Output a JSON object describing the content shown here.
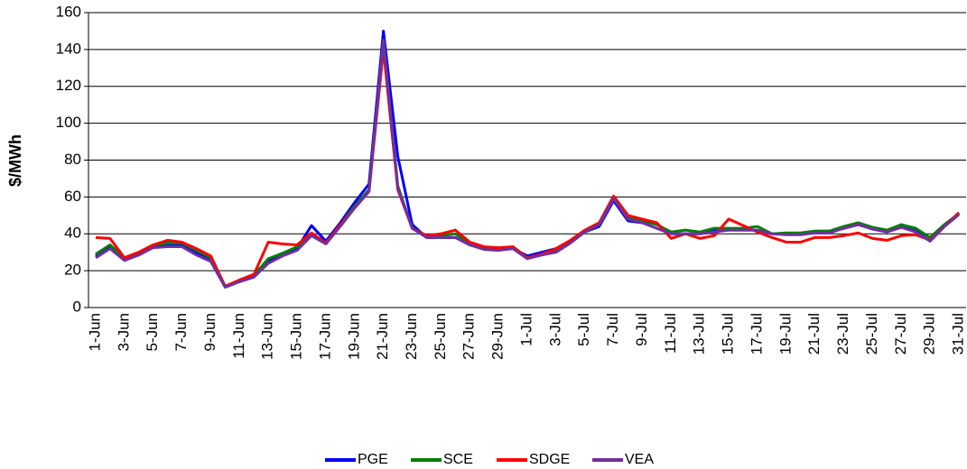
{
  "chart_data": {
    "type": "line",
    "y_label": "$/MWh",
    "categories": [
      "1-Jun",
      null,
      "3-Jun",
      null,
      "5-Jun",
      null,
      "7-Jun",
      null,
      "9-Jun",
      null,
      "11-Jun",
      null,
      "13-Jun",
      null,
      "15-Jun",
      null,
      "17-Jun",
      null,
      "19-Jun",
      null,
      "21-Jun",
      null,
      "23-Jun",
      null,
      "25-Jun",
      null,
      "27-Jun",
      null,
      "29-Jun",
      null,
      "1-Jul",
      null,
      "3-Jul",
      null,
      "5-Jul",
      null,
      "7-Jul",
      null,
      "9-Jul",
      null,
      "11-Jul",
      null,
      "13-Jul",
      null,
      "15-Jul",
      null,
      "17-Jul",
      null,
      "19-Jul",
      null,
      "21-Jul",
      null,
      "23-Jul",
      null,
      "25-Jul",
      null,
      "27-Jul",
      null,
      "29-Jul",
      null,
      "31-Jul"
    ],
    "series": [
      {
        "name": "PGE",
        "color": "#0000ff",
        "values": [
          28,
          33,
          26,
          29,
          33,
          34,
          34,
          30,
          26,
          11.5,
          14.5,
          18,
          25,
          29,
          32,
          44.5,
          36,
          46,
          57,
          67,
          150,
          82,
          45,
          38,
          38,
          38,
          34,
          32,
          31.5,
          32,
          28,
          30,
          32,
          36,
          41,
          44,
          58,
          47,
          46,
          43,
          40,
          40,
          40,
          42,
          42,
          42,
          42,
          40,
          40,
          40,
          41,
          41,
          43,
          45,
          43,
          41,
          44,
          42,
          38,
          45,
          51
        ]
      },
      {
        "name": "SCE",
        "color": "#008000",
        "values": [
          29,
          34,
          27,
          30,
          34,
          35,
          35,
          31,
          27,
          11.5,
          14.5,
          17.5,
          26.5,
          29.5,
          33,
          40,
          35,
          45,
          55,
          64,
          145,
          66,
          43,
          39,
          39,
          40,
          35,
          32.5,
          32,
          33,
          27,
          29,
          31,
          36,
          41,
          45,
          59,
          49,
          47,
          45,
          41,
          42,
          41,
          43,
          43,
          43,
          44,
          40,
          40.5,
          40.5,
          41.5,
          41.5,
          44,
          46,
          43.5,
          42,
          45,
          43,
          38,
          45,
          51
        ]
      },
      {
        "name": "SDGE",
        "color": "#ff0000",
        "values": [
          38,
          37.5,
          27,
          30,
          34,
          36.5,
          35.5,
          32,
          28,
          11.5,
          15,
          18,
          35.5,
          34.5,
          34,
          40.5,
          35,
          45,
          54,
          63,
          140,
          64,
          43,
          39,
          40,
          42,
          35.5,
          33,
          32.5,
          33,
          27,
          29,
          32,
          36.5,
          42,
          46,
          60.5,
          50,
          48,
          46,
          37.5,
          40,
          37.5,
          39,
          48,
          44.5,
          41,
          38,
          35.5,
          35.5,
          38,
          38,
          39,
          40.5,
          37.5,
          36.5,
          39,
          39.5,
          36.5,
          44,
          51.5
        ]
      },
      {
        "name": "VEA",
        "color": "#7030a0",
        "values": [
          27,
          32,
          25.5,
          28.5,
          32.5,
          33,
          33,
          28.5,
          25,
          11,
          14,
          16.5,
          24,
          28,
          31,
          39,
          34.5,
          44,
          54,
          63,
          145,
          65,
          43,
          38,
          38,
          38,
          34,
          31.5,
          31,
          32,
          26.5,
          28.5,
          30,
          35,
          41,
          45,
          59,
          48,
          46,
          43,
          40,
          40,
          40,
          41,
          42,
          42,
          42,
          40,
          39.5,
          39.5,
          40.5,
          40.5,
          43,
          45,
          42.5,
          41,
          43.5,
          41,
          36,
          44,
          50.5
        ]
      }
    ],
    "ylim": [
      0,
      160
    ],
    "yticks": [
      0,
      20,
      40,
      60,
      80,
      100,
      120,
      140,
      160
    ],
    "grid": true,
    "legend": "bottom"
  }
}
